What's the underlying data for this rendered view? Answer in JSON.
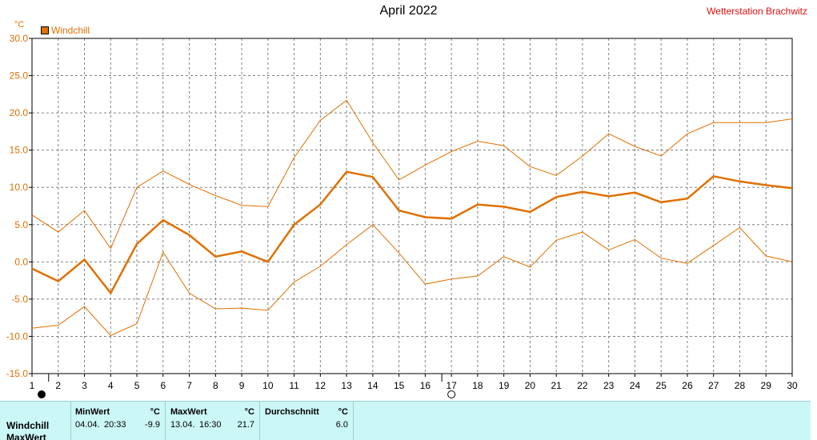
{
  "header": {
    "title": "April 2022",
    "station": "Wetterstation Brachwitz",
    "unit": "°C"
  },
  "legend": {
    "label": "Windchill",
    "color": "#e07000"
  },
  "chart_data": {
    "type": "line",
    "title": "April 2022",
    "ylabel": "°C",
    "x": [
      1,
      2,
      3,
      4,
      5,
      6,
      7,
      8,
      9,
      10,
      11,
      12,
      13,
      14,
      15,
      16,
      17,
      18,
      19,
      20,
      21,
      22,
      23,
      24,
      25,
      26,
      27,
      28,
      29,
      30
    ],
    "xlim": [
      1,
      30
    ],
    "ylim": [
      -15,
      30
    ],
    "y_ticks": [
      "30.0",
      "25.0",
      "20.0",
      "15.0",
      "10.0",
      "5.0",
      "0.0",
      "-5.0",
      "-10.0",
      "-15.0"
    ],
    "grid": true,
    "legend_position": "top-left",
    "series": [
      {
        "name": "Windchill",
        "role": "max",
        "color": "#e07000",
        "values": [
          6.3,
          4.0,
          6.9,
          1.8,
          10.0,
          12.2,
          10.4,
          8.9,
          7.6,
          7.4,
          14.0,
          19.0,
          21.7,
          16.0,
          11.0,
          13.0,
          14.8,
          16.2,
          15.6,
          12.8,
          11.6,
          14.2,
          17.2,
          15.5,
          14.2,
          17.2,
          18.7,
          18.7,
          18.7,
          19.2
        ]
      },
      {
        "name": "Windchill",
        "role": "avg",
        "color": "#e07000",
        "values": [
          -0.9,
          -2.6,
          0.3,
          -4.2,
          2.4,
          5.6,
          3.6,
          0.7,
          1.4,
          0.0,
          5.0,
          7.7,
          12.1,
          11.4,
          6.9,
          6.0,
          5.8,
          7.7,
          7.4,
          6.7,
          8.7,
          9.4,
          8.8,
          9.3,
          8.0,
          8.5,
          11.5,
          10.8,
          10.3,
          9.9
        ]
      },
      {
        "name": "Windchill",
        "role": "min",
        "color": "#e07000",
        "values": [
          -8.9,
          -8.5,
          -6.0,
          -9.9,
          -8.3,
          1.3,
          -4.2,
          -6.3,
          -6.2,
          -6.5,
          -2.7,
          -0.6,
          2.3,
          5.0,
          1.2,
          -3.0,
          -2.3,
          -1.9,
          0.7,
          -0.7,
          2.9,
          4.0,
          1.6,
          3.0,
          0.5,
          -0.2,
          2.2,
          4.6,
          0.8,
          0.0
        ]
      }
    ]
  },
  "footer": {
    "row_labels": [
      "Windchill",
      "MaxWert"
    ],
    "min": {
      "header": "MinWert",
      "unit": "°C",
      "date": "04.04.",
      "time": "20:33",
      "value": "-9.9"
    },
    "max": {
      "header": "MaxWert",
      "unit": "°C",
      "date": "13.04.",
      "time": "16:30",
      "value": "21.7"
    },
    "avg": {
      "header": "Durchschnitt",
      "unit": "°C",
      "value": "6.0"
    }
  },
  "markers": {
    "full_moon_icon": "full-moon",
    "new_moon_icon": "new-moon"
  }
}
